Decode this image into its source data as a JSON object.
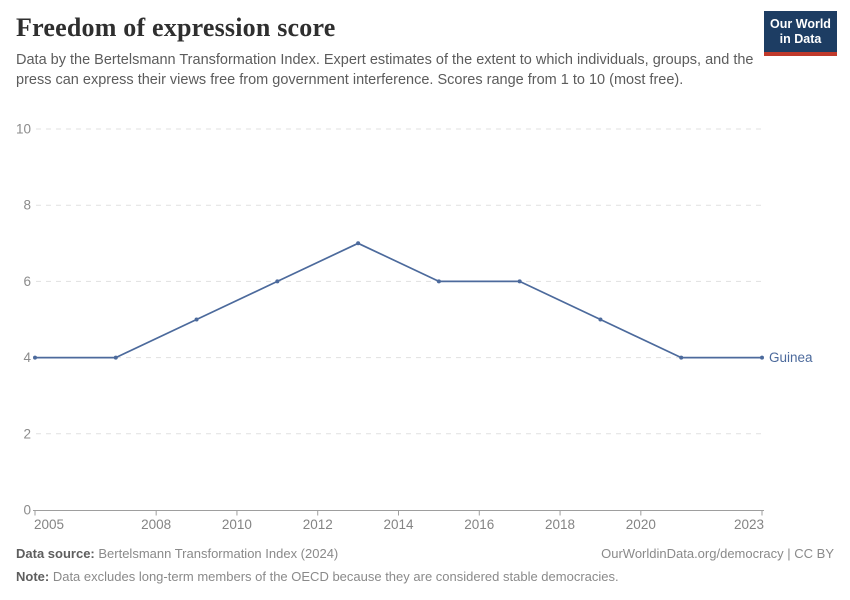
{
  "header": {
    "title": "Freedom of expression score",
    "subtitle": "Data by the Bertelsmann Transformation Index. Expert estimates of the extent to which individuals, groups, and the press can express their views free from government interference. Scores range from 1 to 10 (most free).",
    "logo": {
      "line1": "Our World",
      "line2": "in Data",
      "bg_color": "#1d3d63",
      "accent_color": "#c0392b"
    }
  },
  "chart_data": {
    "type": "line",
    "title": "Freedom of expression score",
    "x": [
      2005,
      2007,
      2009,
      2011,
      2013,
      2015,
      2017,
      2019,
      2021,
      2023
    ],
    "series": [
      {
        "name": "Guinea",
        "color": "#4c6a9c",
        "values": [
          4,
          4,
          5,
          6,
          7,
          6,
          6,
          5,
          4,
          4
        ]
      }
    ],
    "x_ticks": [
      2005,
      2008,
      2010,
      2012,
      2014,
      2016,
      2018,
      2020,
      2023
    ],
    "y_ticks": [
      0,
      2,
      4,
      6,
      8,
      10
    ],
    "xlim": [
      2005,
      2023
    ],
    "ylim": [
      0,
      10
    ],
    "xlabel": "",
    "ylabel": "",
    "grid": "horizontal-dashed",
    "legend": "label-at-line-end"
  },
  "footer": {
    "source_label": "Data source:",
    "source_value": " Bertelsmann Transformation Index (2024)",
    "rights": "OurWorldinData.org/democracy | CC BY",
    "note_label": "Note:",
    "note_value": " Data excludes long-term members of the OECD because they are considered stable democracies."
  }
}
